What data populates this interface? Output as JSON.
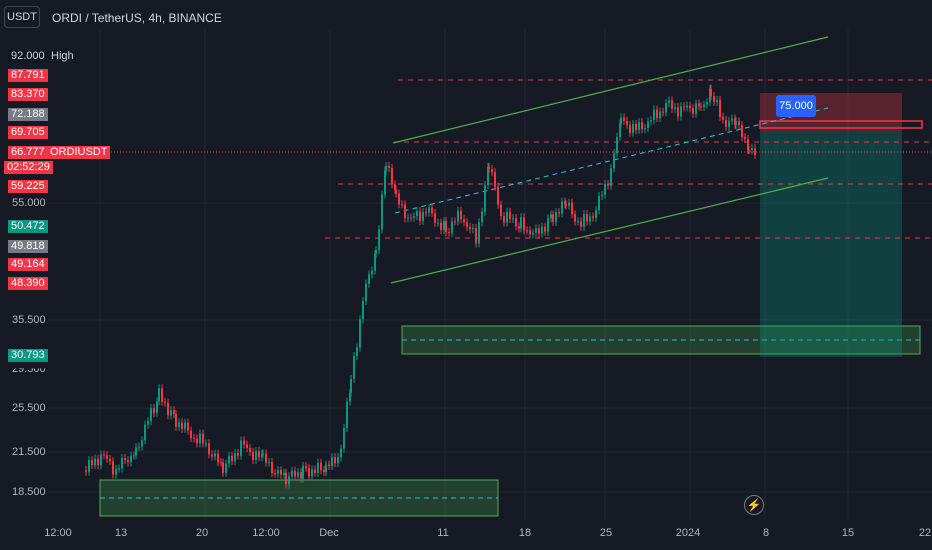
{
  "header": {
    "symbol_button": "USDT",
    "title": "ORDI / TetherUS, 4h, BINANCE"
  },
  "price_axis": {
    "high_value": "92.000",
    "high_label": "High",
    "tags": [
      {
        "text": "87.791",
        "color": "#f23645"
      },
      {
        "text": "83.370",
        "color": "#f23645"
      },
      {
        "text": "72.188",
        "color": "#787b86"
      },
      {
        "text": "69.705",
        "color": "#f23645"
      },
      {
        "text": "66.777",
        "color": "#f23645"
      },
      {
        "text": "02:52:29",
        "color": "#f23645"
      },
      {
        "text": "59.225",
        "color": "#f23645"
      },
      {
        "text": "50.472",
        "color": "#089981"
      },
      {
        "text": "49.818",
        "color": "#787b86"
      },
      {
        "text": "49.164",
        "color": "#f23645"
      },
      {
        "text": "48.390",
        "color": "#f23645"
      },
      {
        "text": "30.793",
        "color": "#089981"
      }
    ],
    "symbol_tag": "ORDIUSDT",
    "scale_labels": [
      "55.000",
      "35.500",
      "29.500",
      "25.500",
      "21.500",
      "18.500"
    ]
  },
  "time_axis": {
    "labels": [
      "12:00",
      "13",
      "20",
      "12:00",
      "Dec",
      "11",
      "18",
      "25",
      "2024",
      "8",
      "15",
      "22"
    ]
  },
  "chart": {
    "target_label": "75.000",
    "colors": {
      "up": "#089981",
      "down": "#f23645",
      "channel": "#4caf50",
      "level": "#f23645",
      "midline": "#26c6da"
    }
  },
  "icons": {
    "lightning": "lightning-icon"
  }
}
